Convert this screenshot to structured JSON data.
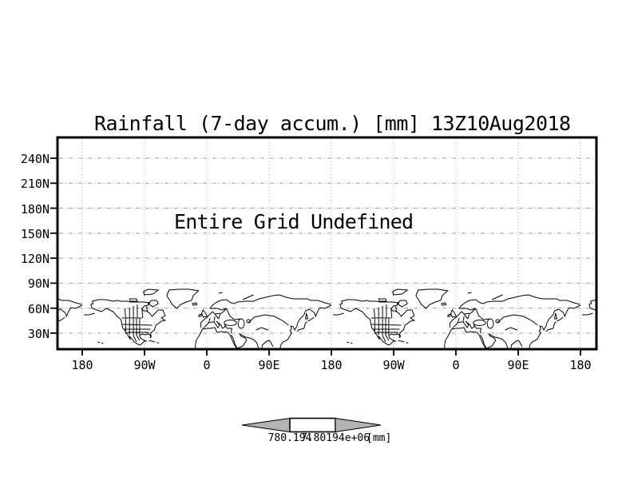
{
  "window": {
    "background": "#ffffff"
  },
  "colors": {
    "frame": "#000000",
    "grid": "#a0a0a0",
    "coast": "#000000",
    "text": "#000000",
    "colorbar_gray": "#b4b4b4",
    "colorbar_white": "#ffffff"
  },
  "chart_data": {
    "type": "heatmap",
    "title": "Rainfall (7-day accum.) [mm] 13Z10Aug2018",
    "status_message": "Entire Grid Undefined",
    "values": null,
    "note": "No shaded data is drawn; the plot reports the entire grid as undefined. Only map coastlines/borders and dashed graticule are visible.",
    "x_axis": {
      "label": "",
      "ticks": [
        "180",
        "90W",
        "0",
        "90E",
        "180",
        "90W",
        "0",
        "90E",
        "180"
      ]
    },
    "y_axis": {
      "label": "",
      "ticks": [
        "240N",
        "210N",
        "180N",
        "150N",
        "120N",
        "90N",
        "60N",
        "30N"
      ]
    },
    "grid": true,
    "legend_position": "bottom-center",
    "colorbar": {
      "label_left": "780.194",
      "label_right": "7.80194e+06",
      "unit": "[mm]"
    }
  },
  "map": {
    "description": "Northern-hemisphere world coastlines with country/state borders, equirectangular, repeated twice across 720 degrees of longitude, squeezed into the lower strip of the plot",
    "paths": [
      "M11,26 L13,31 L25,35 L31,31 L40,35 L45,41 L50,45 L52,55 L56,60 L59,65 L62,70 L61,66 L64,69 L67,73 L74,77 L77,75 L80,72 L83,72 L80,71 L75,68 L74,65 L77,63 L81,64 L86,63 L88,65 L88,68 L89,66 L88,62 L93,58 L95,52 L98,50 L102,47 L107,46 L102,43 L107,40 L104,33 L98,33 L90,41 L87,37 L82,34 L79,34 L77,32 L80,28 L85,27 L87,24 L80,23 L71,23 L62,23 L58,22 L49,22 L46,21 L40,22 L35,21 L29,20 L21,20 L17,21 L13,22 L14,25 Z",
      "M91,29 L98,25 L96,21 L89,21 L85,25 Z",
      "M62,22 L71,22 L70,19 L61,19 Z",
      "M80,14 L91,13 L98,8 L85,7 L79,10 Z",
      "M122,31 L127,26 L134,23 L141,21 L143,15 L150,9 L138,7 L125,7 L112,8 L109,15 L113,21 L116,26 Z",
      "M142,25 L147,24 L148,26 L143,27 Z",
      "M156,42 L161,41 L159,37 L156,33 L154,37 Z M151,39 L154,38 L153,41 L150,41 Z",
      "M153,55 L153,49 L157,45 L161,42 L162,41 L168,35 L171,38 L180,37 L186,31 L180,33 L174,31 L165,31 L167,28 L172,24 L178,21 L186,20 L192,24 L196,25 L200,23 L210,22 L221,22 L228,19 L237,17 L246,15 L254,14 L263,17 L272,19 L281,19 L290,19 L295,21 L304,21 L313,24 L321,26",
      "M321,27 L313,31 L307,30 L304,34 L301,41 L299,36 L293,32 L288,34 L286,39 L281,44 L278,49 L277,53 L274,58 L272,54 L269,53 L270,57 L268,59 L270,62 L268,65 L265,70 L259,73 L256,77 L255,82",
      "M277,60 L279,58 L282,57 L286,56 L287,52 L288,49 L290,48 M288,44 L289,37 L291,44 Z",
      "M156,56 L159,53 L163,49 L167,48 L170,48 L173,52 L175,55 L177,52 L175,49 L173,47 L179,52 L181,56 L184,54 L184,52 L187,56 L193,56 L192,62",
      "M146,82 L146,77 L147,71 L152,63 L155,57 L161,56 L165,56 L171,55 L174,61 L179,60 L188,61 L191,65 L195,74 L199,81",
      "M192,64 L195,69 L197,76 L200,81 L207,78 L212,71 L210,68 L205,66 L203,63 L207,65 L211,67 L216,68 L221,70 L225,74 L228,82 M232,81 L232,77 L238,72 L241,71 L243,73 L246,79",
      "M201,50 a4,6 0 1,0 8,0 a4,6 0 1,0 -8,0 M183,49 a8,3.5 0 1,0 16,0 a8,3.5 0 1,0 -16,0 M212,47 a2.5,2 0 1,0 5,0 a2.5,2 0 1,0 -5,0",
      "M51,43 L77,43 M56,44 L56,63 M61,44 L61,64 M66,44 L66,65 L70,73 M70,44 L70,64 L74,71 M74,44 L74,64 M52,51 L90,52 M54,57 L88,57 M58,61 L86,61 M55,31 L56,43 M61,30 L61,43 M66,28 L66,43 M71,26 L71,43 M77,30 L78,43 M83,28 L84,35",
      "M186,31 L190,40 L196,45 L205,44 M171,38 L176,44 M163,49 L165,43 M170,48 L171,41 M176,44 L178,38 M214,49 L222,42 L235,39 L248,41 L258,46 L266,52 M224,58 L231,55 L240,58 M207,20 L214,17 L221,14 M176,12 L181,11",
      "M86,71 L94,73 M96,74 L99,74 M20,73 L23,74 M25,74 L27,75 M2,39 L9,39 L16,37 M299,42 L295,45 L291,47"
    ]
  }
}
